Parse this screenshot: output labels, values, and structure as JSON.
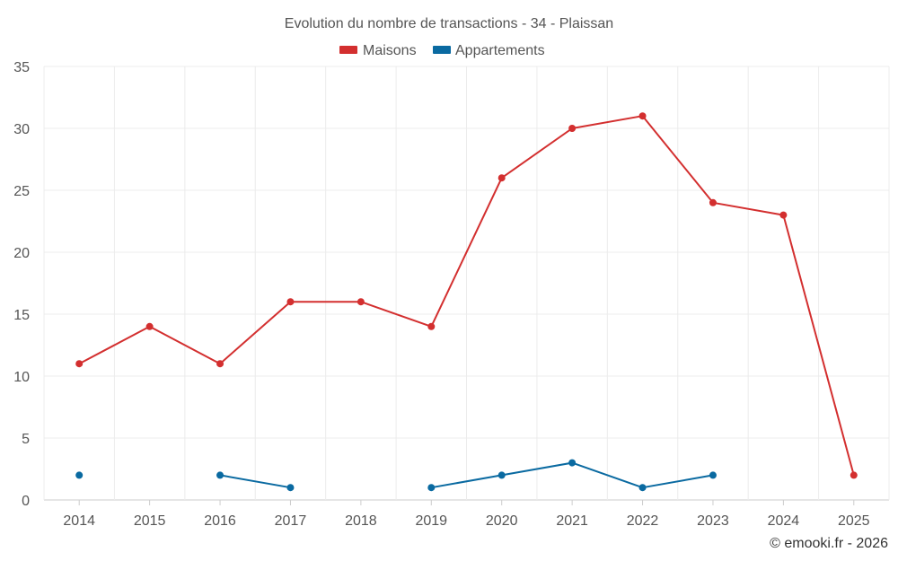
{
  "chart_data": {
    "type": "line",
    "title": "Evolution du nombre de transactions - 34 - Plaissan",
    "categories": [
      "2014",
      "2015",
      "2016",
      "2017",
      "2018",
      "2019",
      "2020",
      "2021",
      "2022",
      "2023",
      "2024",
      "2025"
    ],
    "ylim": [
      0,
      35
    ],
    "yticks": [
      0,
      5,
      10,
      15,
      20,
      25,
      30,
      35
    ],
    "grid": true,
    "legend_position": "top-center",
    "series": [
      {
        "name": "Maisons",
        "color": "#d32f2f",
        "values": [
          11,
          14,
          11,
          16,
          16,
          14,
          26,
          30,
          31,
          24,
          23,
          2
        ]
      },
      {
        "name": "Appartements",
        "color": "#0a6aa1",
        "values": [
          2,
          null,
          2,
          1,
          null,
          1,
          2,
          3,
          1,
          2,
          null,
          null
        ]
      }
    ],
    "credit": "© emooki.fr - 2026"
  }
}
